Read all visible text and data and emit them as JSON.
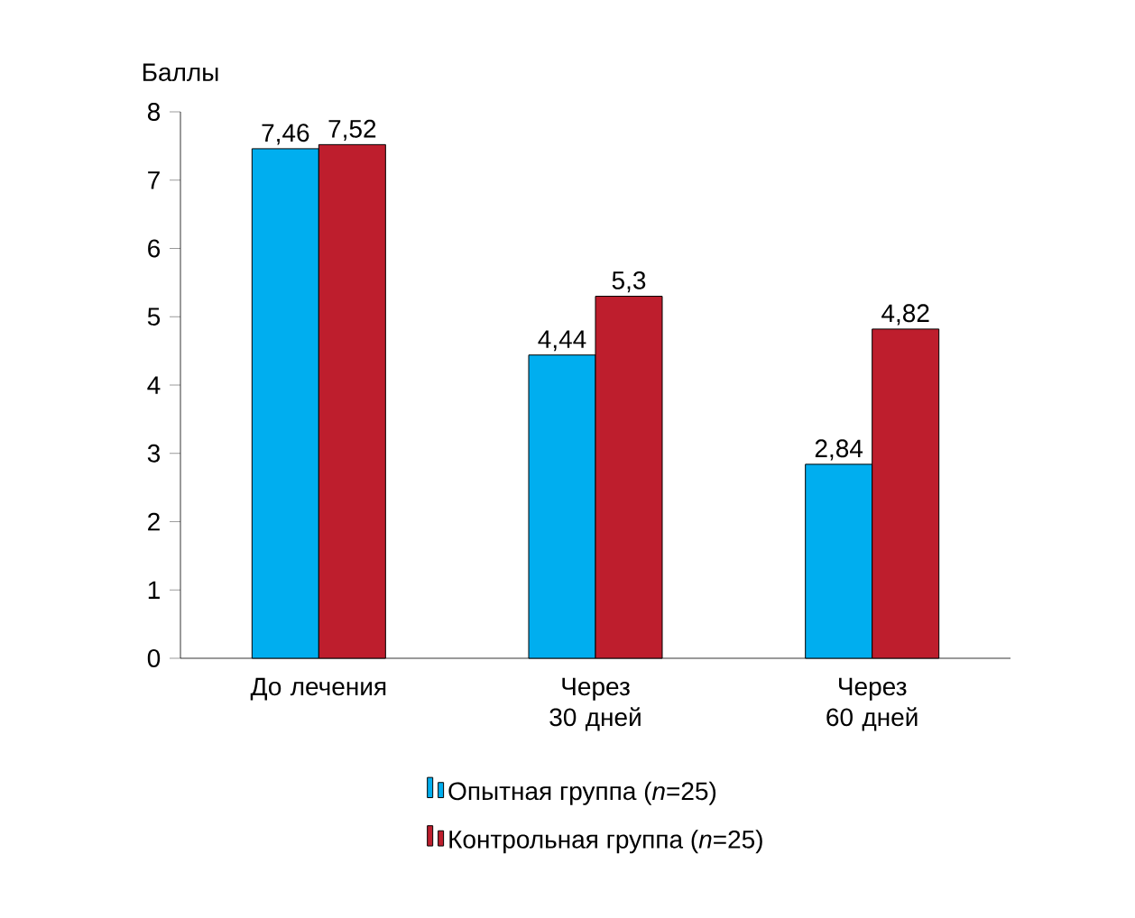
{
  "chart_data": {
    "type": "bar",
    "ylabel": "Баллы",
    "categories": [
      "До лечения",
      "Через 30 дней",
      "Через 60 дней"
    ],
    "series": [
      {
        "name": "Опытная группа (*n*=25)",
        "color": "#00aeef",
        "values": [
          7.46,
          4.44,
          2.84
        ],
        "value_labels": [
          "7,46",
          "4,44",
          "2,84"
        ]
      },
      {
        "name": "Контрольная группа (*n*=25)",
        "color": "#be1e2d",
        "values": [
          7.52,
          5.3,
          4.82
        ],
        "value_labels": [
          "7,52",
          "5,3",
          "4,82"
        ]
      }
    ],
    "ylim": [
      0,
      8
    ],
    "yticks": [
      0,
      1,
      2,
      3,
      4,
      5,
      6,
      7,
      8
    ],
    "legend": "bottom"
  }
}
